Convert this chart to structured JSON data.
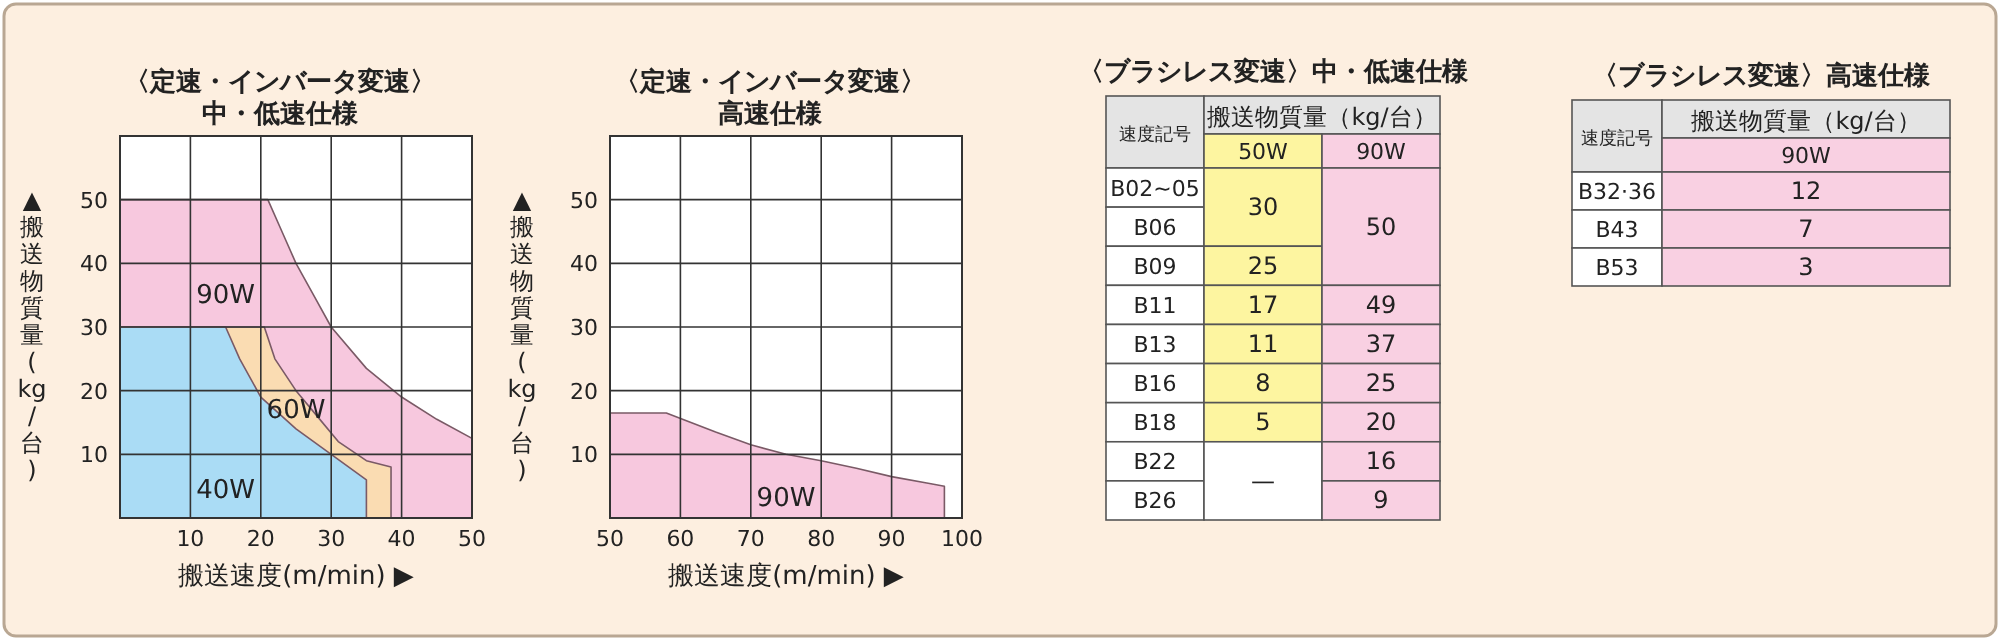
{
  "chart_data": [
    {
      "type": "area",
      "title": "〈定速・インバータ変速〉",
      "subtitle": "中・低速仕様",
      "xlabel": "搬送速度(m/min) ▶",
      "ylabel": "▲搬送物質量(kg/台)",
      "xlim": [
        0,
        50
      ],
      "ylim": [
        0,
        60
      ],
      "xticks": [
        10,
        20,
        30,
        40,
        50
      ],
      "yticks": [
        10,
        20,
        30,
        40,
        50
      ],
      "grid": true,
      "series": [
        {
          "color": "#f7c8de",
          "x": [
            0,
            21,
            23,
            25,
            27.5,
            30,
            35,
            40,
            45,
            50
          ],
          "values": [
            50,
            50,
            45,
            40,
            35,
            30,
            23.5,
            19,
            15.5,
            12.5
          ]
        },
        {
          "color": "#fadcb2",
          "x": [
            0,
            20.5,
            22,
            25,
            28,
            31,
            35,
            38.5,
            38.5
          ],
          "values": [
            30,
            30,
            25,
            20,
            16,
            12,
            9,
            8,
            0
          ]
        },
        {
          "color": "#aadcf5",
          "x": [
            0,
            15,
            17,
            20,
            25,
            30,
            35,
            35
          ],
          "values": [
            30,
            30,
            25,
            19,
            14,
            10,
            6,
            0
          ]
        }
      ],
      "annotations": [
        "90W",
        "60W",
        "40W"
      ]
    },
    {
      "type": "area",
      "title": "〈定速・インバータ変速〉",
      "subtitle": "高速仕様",
      "xlabel": "搬送速度(m/min) ▶",
      "ylabel": "▲搬送物質量(kg/台)",
      "xlim": [
        50,
        100
      ],
      "ylim": [
        0,
        60
      ],
      "xticks": [
        50,
        60,
        70,
        80,
        90,
        100
      ],
      "yticks": [
        10,
        20,
        30,
        40,
        50
      ],
      "grid": true,
      "series": [
        {
          "color": "#f7c8de",
          "x": [
            50,
            58,
            65,
            70,
            75,
            80,
            85,
            90,
            95,
            97.5,
            97.5
          ],
          "values": [
            16.5,
            16.5,
            13.5,
            11.5,
            10,
            9,
            7.8,
            6.5,
            5.5,
            5,
            0
          ]
        }
      ],
      "annotations": [
        "90W"
      ]
    },
    {
      "type": "other",
      "title": "〈ブラシレス変速〉中・低速仕様",
      "annotations": [
        "速度記号",
        "搬送物質量（kg/台）"
      ],
      "categories": [
        "50W",
        "90W"
      ],
      "y_categories": [
        "B02~05",
        "B06",
        "B09",
        "B11",
        "B13",
        "B16",
        "B18",
        "B22",
        "B26"
      ],
      "cell_labels": [
        [
          "30",
          "50"
        ],
        [
          null,
          null
        ],
        [
          "25",
          null
        ],
        [
          "17",
          "49"
        ],
        [
          "11",
          "37"
        ],
        [
          "8",
          "25"
        ],
        [
          "5",
          "20"
        ],
        [
          "—",
          "16"
        ],
        [
          null,
          "9"
        ]
      ],
      "colors": [
        [
          "#fdf5a0",
          "#f9d0e2"
        ],
        [
          "#fdf5a0",
          "#f9d0e2"
        ],
        [
          null,
          null
        ],
        [
          "#fdf5a0",
          null
        ],
        [
          "#fdf5a0",
          "#f9d0e2"
        ],
        [
          "#fdf5a0",
          "#f9d0e2"
        ],
        [
          "#fdf5a0",
          "#f9d0e2"
        ],
        [
          "#fdf5a0",
          "#f9d0e2"
        ],
        [
          "#ffffff",
          "#f9d0e2"
        ],
        [
          null,
          "#f9d0e2"
        ]
      ]
    },
    {
      "type": "other",
      "title": "〈ブラシレス変速〉高速仕様",
      "annotations": [
        "速度記号",
        "搬送物質量（kg/台）"
      ],
      "categories": [
        "90W"
      ],
      "y_categories": [
        "B32·36",
        "B43",
        "B53"
      ],
      "cell_labels": [
        [
          "12"
        ],
        [
          "7"
        ],
        [
          "3"
        ]
      ],
      "colors": [
        [
          "#f9d0e2"
        ],
        [
          "#f9d0e2"
        ],
        [
          "#f9d0e2"
        ],
        [
          "#f9d0e2"
        ]
      ]
    }
  ]
}
